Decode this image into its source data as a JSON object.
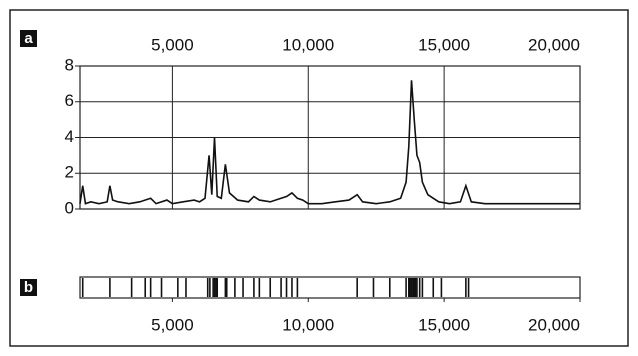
{
  "chart_data": [
    {
      "type": "line",
      "label": "a",
      "color": "#111111",
      "x": [
        1600,
        1700,
        1800,
        2000,
        2300,
        2600,
        2700,
        2800,
        3000,
        3400,
        3800,
        4200,
        4400,
        4800,
        5000,
        5400,
        5800,
        6000,
        6200,
        6350,
        6450,
        6550,
        6650,
        6800,
        6950,
        7100,
        7400,
        7800,
        8000,
        8200,
        8600,
        9000,
        9200,
        9400,
        9600,
        9800,
        10000,
        10500,
        11000,
        11500,
        11800,
        12000,
        12500,
        13000,
        13400,
        13600,
        13700,
        13800,
        13900,
        14000,
        14100,
        14200,
        14400,
        14800,
        15200,
        15600,
        15800,
        16000,
        16500,
        17000,
        18000,
        19000,
        20000
      ],
      "values": [
        0.3,
        1.3,
        0.3,
        0.4,
        0.3,
        0.4,
        1.3,
        0.5,
        0.4,
        0.3,
        0.4,
        0.6,
        0.3,
        0.5,
        0.3,
        0.4,
        0.5,
        0.4,
        0.6,
        3.0,
        0.8,
        4.0,
        0.7,
        0.6,
        2.5,
        0.9,
        0.5,
        0.4,
        0.7,
        0.5,
        0.4,
        0.6,
        0.7,
        0.9,
        0.6,
        0.5,
        0.3,
        0.3,
        0.4,
        0.5,
        0.8,
        0.4,
        0.3,
        0.4,
        0.6,
        1.5,
        3.5,
        7.2,
        5.0,
        3.0,
        2.6,
        1.5,
        0.8,
        0.4,
        0.3,
        0.4,
        1.3,
        0.4,
        0.3,
        0.3,
        0.3,
        0.3,
        0.3
      ],
      "xlim": [
        1600,
        20000
      ],
      "xticks": [
        {
          "value": 5000,
          "label": "5,000"
        },
        {
          "value": 10000,
          "label": "10,000"
        },
        {
          "value": 15000,
          "label": "15,000"
        },
        {
          "value": 20000,
          "label": "20,000"
        }
      ],
      "ylim": [
        0,
        8
      ],
      "yticks": [
        0,
        2,
        4,
        6,
        8
      ],
      "grid": true
    },
    {
      "type": "strip",
      "label": "b",
      "color": "#111111",
      "positions": [
        1700,
        2700,
        3500,
        4000,
        4200,
        4600,
        5200,
        5500,
        6300,
        6380,
        6500,
        6550,
        6600,
        6650,
        6950,
        7000,
        7300,
        7600,
        8000,
        8200,
        8600,
        9000,
        9200,
        9400,
        9600,
        11800,
        12400,
        13000,
        13600,
        13700,
        13750,
        13800,
        13850,
        13900,
        13950,
        14000,
        14100,
        14200,
        14600,
        14900,
        15800,
        15900
      ],
      "xlim": [
        1600,
        20000
      ],
      "xticks": [
        {
          "value": 5000,
          "label": "5,000"
        },
        {
          "value": 10000,
          "label": "10,000"
        },
        {
          "value": 15000,
          "label": "15,000"
        },
        {
          "value": 20000,
          "label": "20,000"
        }
      ]
    }
  ]
}
